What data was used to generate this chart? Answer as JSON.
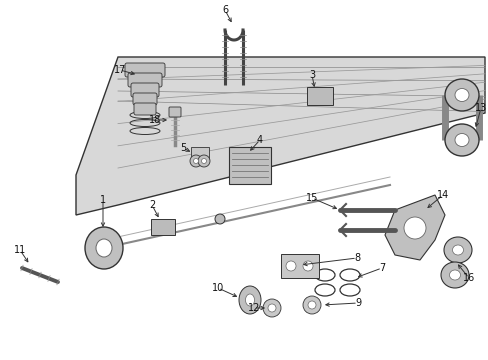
{
  "bg_color": "#ffffff",
  "fig_width": 4.89,
  "fig_height": 3.6,
  "dpi": 100,
  "spring_color": "#d8d8d8",
  "part_edge": "#333333",
  "part_fill": "#c8c8c8",
  "label_fs": 7,
  "lc": "#333333"
}
